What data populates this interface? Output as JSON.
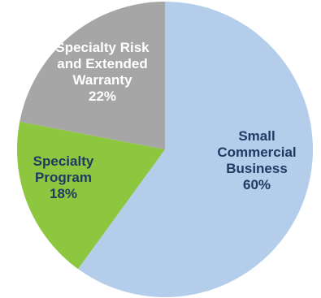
{
  "chart_data": {
    "type": "pie",
    "title": "",
    "slices": [
      {
        "name": "Small Commercial Business",
        "label_lines": [
          "Small",
          "Commercial",
          "Business",
          "60%"
        ],
        "value": 60,
        "color": "#b3cdea",
        "label_color": "#1f3a63"
      },
      {
        "name": "Specialty Program",
        "label_lines": [
          "Specialty",
          "Program",
          "18%"
        ],
        "value": 18,
        "color": "#8dc63f",
        "label_color": "#1f3a63"
      },
      {
        "name": "Specialty Risk and Extended Warranty",
        "label_lines": [
          "Specialty Risk",
          "and Extended",
          "Warranty",
          "22%"
        ],
        "value": 22,
        "color": "#a6a6a6",
        "label_color": "#ffffff"
      }
    ],
    "start_angle_deg": 0,
    "direction": "clockwise",
    "legend": "none"
  }
}
